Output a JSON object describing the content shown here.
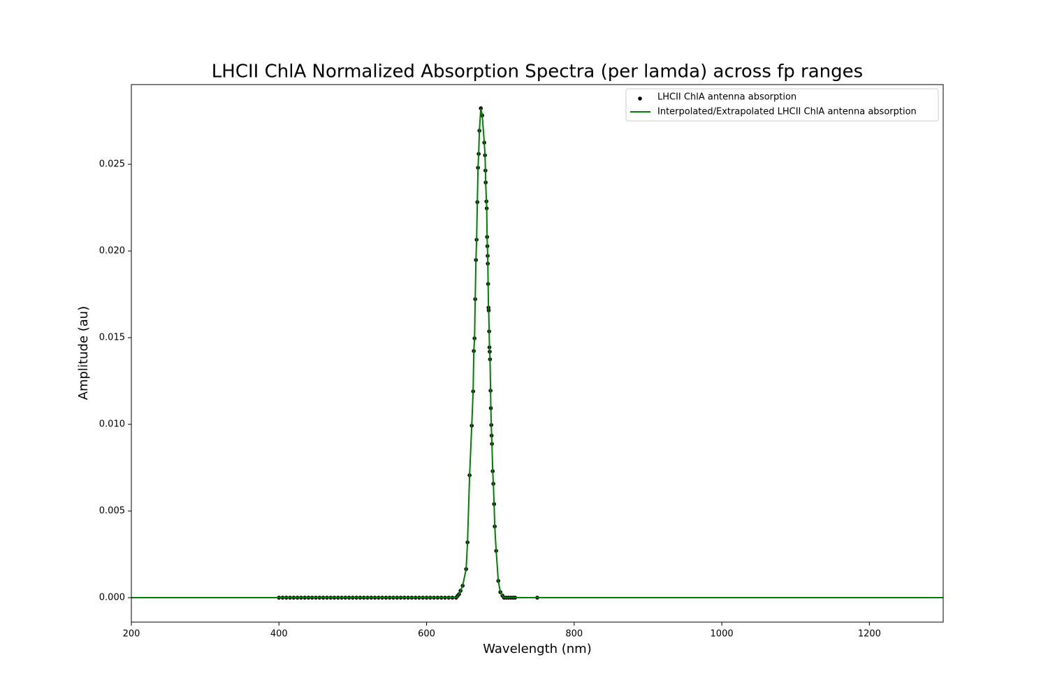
{
  "chart_data": {
    "type": "scatter",
    "title": "LHCII ChlA Normalized Absorption Spectra (per lamda) across fp ranges",
    "xlabel": "Wavelength (nm)",
    "ylabel": "Amplitude (au)",
    "xlim": [
      200,
      1300
    ],
    "ylim": [
      -0.00141,
      0.0296
    ],
    "xticks": [
      200,
      400,
      600,
      800,
      1000,
      1200
    ],
    "yticks": [
      {
        "value": 0,
        "label": "0.000"
      },
      {
        "value": 0.005,
        "label": "0.005"
      },
      {
        "value": 0.01,
        "label": "0.010"
      },
      {
        "value": 0.015,
        "label": "0.015"
      },
      {
        "value": 0.02,
        "label": "0.020"
      },
      {
        "value": 0.025,
        "label": "0.025"
      }
    ],
    "legend": "upper right",
    "grid": false,
    "series": [
      {
        "name": "LHCII ChlA antenna absorption",
        "type": "scatter",
        "color": "#000000",
        "x": [
          400,
          405,
          410,
          415,
          420,
          425,
          430,
          435,
          440,
          445,
          450,
          455,
          460,
          465,
          470,
          475,
          480,
          485,
          490,
          495,
          500,
          505,
          510,
          515,
          520,
          525,
          530,
          535,
          540,
          545,
          550,
          555,
          560,
          565,
          570,
          575,
          580,
          585,
          590,
          595,
          600,
          605,
          610,
          615,
          620,
          625,
          630,
          635,
          640,
          642,
          644,
          646,
          648.9,
          653.6,
          655.5,
          658.3,
          661.2,
          663.1,
          664,
          665,
          665.9,
          666.9,
          667.8,
          668.8,
          669.7,
          670.6,
          671.6,
          673.5,
          675.4,
          678.2,
          679.2,
          679.8,
          680.1,
          681.1,
          681.5,
          682,
          682.4,
          682.8,
          683,
          683.4,
          683.9,
          684.2,
          684.8,
          685.2,
          685.6,
          686,
          686.7,
          687.1,
          687.7,
          688.1,
          688.6,
          689.6,
          690.5,
          691.5,
          692.4,
          694.3,
          697.2,
          700,
          702.8,
          705,
          708,
          711,
          714,
          717,
          720,
          750
        ],
        "values": [
          0,
          0,
          0,
          0,
          0,
          0,
          0,
          0,
          0,
          0,
          0,
          0,
          0,
          0,
          0,
          0,
          0,
          0,
          0,
          0,
          0,
          0,
          0,
          0,
          0,
          0,
          0,
          0,
          0,
          0,
          0,
          0,
          0,
          0,
          0,
          0,
          0,
          0,
          0,
          0,
          0,
          0,
          0,
          0,
          0,
          0,
          0,
          0,
          0,
          0.0001,
          0.0002,
          0.0004,
          0.00069,
          0.00165,
          0.00319,
          0.00706,
          0.00992,
          0.0119,
          0.01423,
          0.01496,
          0.01722,
          0.01948,
          0.02065,
          0.02282,
          0.0248,
          0.0256,
          0.02694,
          0.02823,
          0.02782,
          0.02625,
          0.02552,
          0.02464,
          0.02395,
          0.02286,
          0.02246,
          0.02081,
          0.02028,
          0.01972,
          0.01927,
          0.0181,
          0.01673,
          0.01657,
          0.01536,
          0.01444,
          0.01419,
          0.01375,
          0.01194,
          0.01093,
          0.00996,
          0.00935,
          0.00887,
          0.0073,
          0.00657,
          0.0054,
          0.00411,
          0.0027,
          0.00097,
          0.00032,
          0.00012,
          0,
          0,
          0,
          0,
          0,
          0,
          0
        ]
      },
      {
        "name": "Interpolated/Extrapolated LHCII ChlA antenna absorption",
        "type": "line",
        "color": "#008000",
        "x": [
          200,
          640,
          642,
          644,
          646,
          648.9,
          653.6,
          655.5,
          658.3,
          661.2,
          663.1,
          664,
          665,
          665.9,
          666.9,
          667.8,
          668.8,
          669.7,
          670.6,
          671.6,
          673.5,
          675.4,
          678.2,
          679.2,
          679.8,
          680.1,
          681.1,
          681.5,
          682,
          682.4,
          682.8,
          683,
          683.4,
          683.9,
          684.2,
          684.8,
          685.2,
          685.6,
          686,
          686.7,
          687.1,
          687.7,
          688.1,
          688.6,
          689.6,
          690.5,
          691.5,
          692.4,
          694.3,
          697.2,
          700,
          702.8,
          705,
          1300
        ],
        "values": [
          0,
          0,
          0.0001,
          0.0002,
          0.0004,
          0.00069,
          0.00165,
          0.00319,
          0.00706,
          0.00992,
          0.0119,
          0.01423,
          0.01496,
          0.01722,
          0.01948,
          0.02065,
          0.02282,
          0.0248,
          0.0256,
          0.02694,
          0.02823,
          0.02782,
          0.02625,
          0.02552,
          0.02464,
          0.02395,
          0.02286,
          0.02246,
          0.02081,
          0.02028,
          0.01972,
          0.01927,
          0.0181,
          0.01673,
          0.01657,
          0.01536,
          0.01444,
          0.01419,
          0.01375,
          0.01194,
          0.01093,
          0.00996,
          0.00935,
          0.00887,
          0.0073,
          0.00657,
          0.0054,
          0.00411,
          0.0027,
          0.00097,
          0.00032,
          0.00012,
          0,
          0
        ]
      }
    ]
  }
}
